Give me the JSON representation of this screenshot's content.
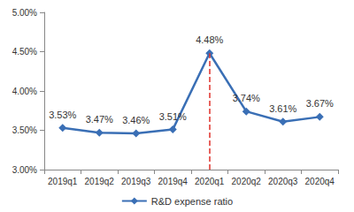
{
  "chart_data": {
    "type": "line",
    "categories": [
      "2019q1",
      "2019q2",
      "2019q3",
      "2019q4",
      "2020q1",
      "2020q2",
      "2020q3",
      "2020q4"
    ],
    "series": [
      {
        "name": "R&D expense ratio",
        "color": "#3a6fb5",
        "marker": "diamond",
        "values": [
          3.53,
          3.47,
          3.46,
          3.51,
          4.48,
          3.74,
          3.61,
          3.67
        ],
        "value_labels": [
          "3.53%",
          "3.47%",
          "3.46%",
          "3.51%",
          "4.48%",
          "3.74%",
          "3.61%",
          "3.67%"
        ]
      }
    ],
    "ylim": [
      3,
      5
    ],
    "yticks": [
      {
        "value": 3,
        "label": "3.00%"
      },
      {
        "value": 3.5,
        "label": "3.50%"
      },
      {
        "value": 4,
        "label": "4.00%"
      },
      {
        "value": 4.5,
        "label": "4.50%"
      },
      {
        "value": 5,
        "label": "5.00%"
      }
    ],
    "grid": false,
    "data_labels": true,
    "legend": "bottom",
    "annotations": [
      {
        "type": "vline",
        "x": "2020q1",
        "color": "#e0302a",
        "line_style": "dashed"
      }
    ]
  }
}
